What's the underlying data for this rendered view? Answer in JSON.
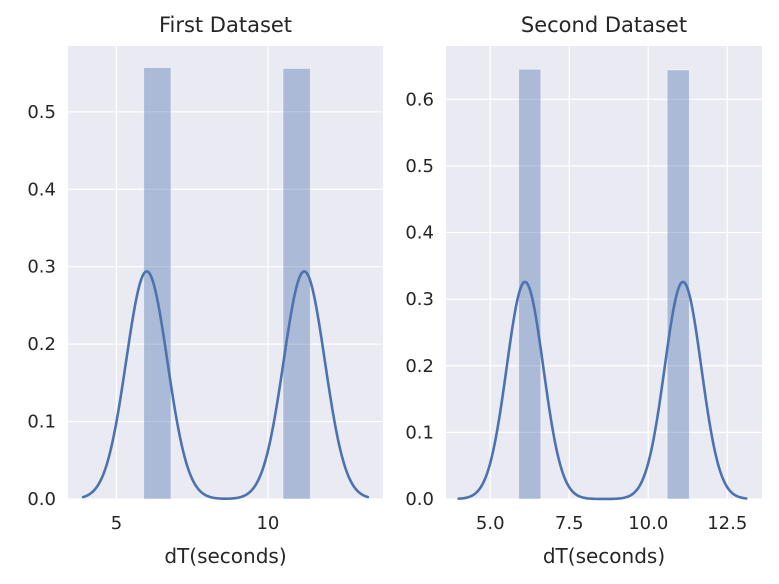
{
  "chart_data": [
    {
      "type": "bar",
      "title": "First Dataset",
      "xlabel": "dT(seconds)",
      "ylabel": "",
      "xlim": [
        3.4,
        13.8
      ],
      "ylim": [
        0.0,
        0.585
      ],
      "xticks": [
        5,
        10
      ],
      "xtick_labels": [
        "5",
        "10"
      ],
      "yticks": [
        0.0,
        0.1,
        0.2,
        0.3,
        0.4,
        0.5
      ],
      "ytick_labels": [
        "0.0",
        "0.1",
        "0.2",
        "0.3",
        "0.4",
        "0.5"
      ],
      "grid": true,
      "histogram": {
        "bins": [
          {
            "x0": 5.9,
            "x1": 6.8,
            "height": 0.557
          },
          {
            "x0": 10.5,
            "x1": 11.4,
            "height": 0.556
          }
        ]
      },
      "kde": {
        "peaks": [
          {
            "center": 6.0,
            "height": 0.294,
            "sigma": 0.68
          },
          {
            "center": 11.2,
            "height": 0.294,
            "sigma": 0.68
          }
        ],
        "x_range": [
          3.9,
          13.3
        ]
      }
    },
    {
      "type": "bar",
      "title": "Second Dataset",
      "xlabel": "dT(seconds)",
      "ylabel": "",
      "xlim": [
        3.6,
        13.6
      ],
      "ylim": [
        0.0,
        0.68
      ],
      "xticks": [
        5.0,
        7.5,
        10.0,
        12.5
      ],
      "xtick_labels": [
        "5.0",
        "7.5",
        "10.0",
        "12.5"
      ],
      "yticks": [
        0.0,
        0.1,
        0.2,
        0.3,
        0.4,
        0.5,
        0.6
      ],
      "ytick_labels": [
        "0.0",
        "0.1",
        "0.2",
        "0.3",
        "0.4",
        "0.5",
        "0.6"
      ],
      "grid": true,
      "histogram": {
        "bins": [
          {
            "x0": 5.9,
            "x1": 6.6,
            "height": 0.645
          },
          {
            "x0": 10.6,
            "x1": 11.3,
            "height": 0.644
          }
        ]
      },
      "kde": {
        "peaks": [
          {
            "center": 6.1,
            "height": 0.326,
            "sigma": 0.58
          },
          {
            "center": 11.1,
            "height": 0.326,
            "sigma": 0.58
          }
        ],
        "x_range": [
          4.0,
          13.1
        ]
      }
    }
  ]
}
